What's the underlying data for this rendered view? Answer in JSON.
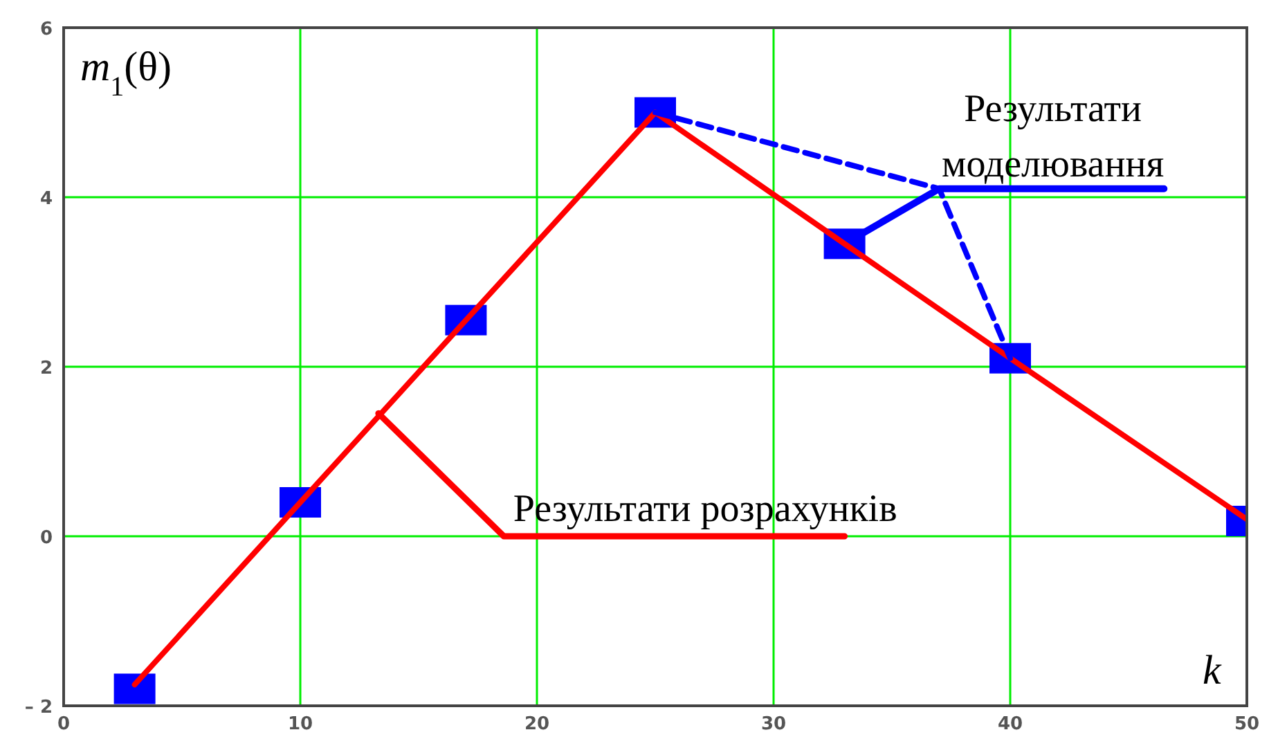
{
  "chart_data": {
    "type": "line",
    "ylabel": "m$_{1}$(θ)",
    "xlabel": "k",
    "xlim": [
      0,
      50
    ],
    "xticks": [
      0,
      10,
      20,
      30,
      40,
      50
    ],
    "ylim": [
      -2,
      6
    ],
    "yticks": [
      {
        "value": -2,
        "label": "– 2"
      },
      0,
      2,
      4,
      6
    ],
    "grid": true,
    "series": [
      {
        "type": "line",
        "color": "#ff0000",
        "x": [
          3,
          10,
          17,
          25,
          33,
          40,
          50
        ],
        "values": [
          -1.75,
          0.4,
          2.55,
          5,
          3.45,
          2.1,
          0.2
        ]
      },
      {
        "type": "scatter",
        "marker": "square",
        "color": "#0000ff",
        "x": [
          3,
          10,
          17,
          25,
          33,
          40,
          50
        ],
        "values": [
          -1.8,
          0.4,
          2.55,
          5,
          3.45,
          2.1,
          0.18
        ]
      },
      {
        "type": "line",
        "line_style": "dashed",
        "color": "#0000ff",
        "x": [
          25,
          37,
          40
        ],
        "values": [
          5,
          4.1,
          2.1
        ]
      }
    ],
    "annotations": [
      {
        "text": "Результати розрахунків",
        "x": 13.3,
        "y": 1.45
      },
      {
        "text": "Результати моделювання",
        "x": 33,
        "y": 3.45
      }
    ]
  }
}
